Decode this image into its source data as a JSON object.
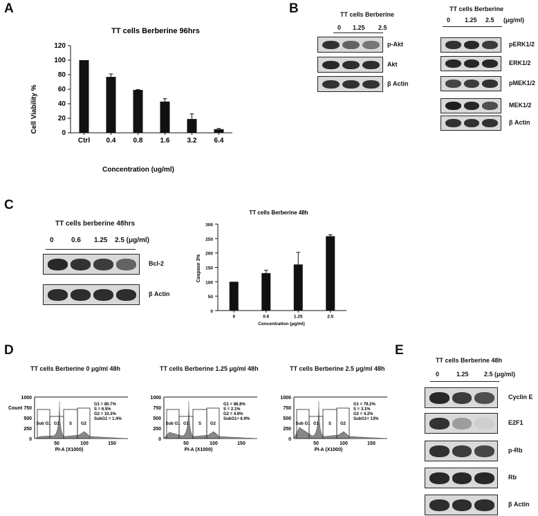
{
  "panel_letters": {
    "a": "A",
    "b": "B",
    "c": "C",
    "d": "D",
    "e": "E"
  },
  "panelA": {
    "title": "TT cells  Berberine  96hrs",
    "chart_data": {
      "type": "bar",
      "title": "TT cells  Berberine  96hrs",
      "xlabel": "Concentration (ug/ml)",
      "ylabel": "Cell Viability %",
      "categories": [
        "Ctrl",
        "0.4",
        "0.8",
        "1.6",
        "3.2",
        "6.4"
      ],
      "values": [
        100,
        77,
        59,
        43,
        19,
        5
      ],
      "errors": [
        0,
        4,
        0.5,
        4,
        7,
        1
      ],
      "ylim": [
        0,
        120
      ],
      "yticks": [
        0,
        20,
        40,
        60,
        80,
        100,
        120
      ]
    }
  },
  "panelB": {
    "header_left": "TT cells Berberine",
    "conc_left": [
      "0",
      "1.25",
      "2.5"
    ],
    "rows_left": [
      "p-Akt",
      "Akt",
      "β Actin"
    ],
    "header_right": "TT cells Berberine",
    "conc_right": [
      "0",
      "1.25",
      "2.5"
    ],
    "unit_right": "(μg/ml)",
    "rows_right": [
      "pERK1/2",
      "ERK1/2",
      "pMEK1/2",
      "MEK1/2",
      "β Actin"
    ]
  },
  "panelC": {
    "blot_header": "TT cells berberine 48hrs",
    "conc": [
      "0",
      "0.6",
      "1.25",
      "2.5 (μg/ml)"
    ],
    "rows": [
      "Bcl-2",
      "β Actin"
    ],
    "chart_title": "TT cells  Berberine  48h",
    "chart_data": {
      "type": "bar",
      "title": "TT cells  Berberine  48h",
      "xlabel": "Concentration (μg/ml)",
      "ylabel": "Caspase 3%",
      "categories": [
        "0",
        "0.6",
        "1.25",
        "2.5"
      ],
      "values": [
        100,
        130,
        160,
        258
      ],
      "errors": [
        0,
        10,
        42,
        5
      ],
      "ylim": [
        0,
        300
      ],
      "yticks": [
        0,
        50,
        100,
        150,
        200,
        250,
        300
      ]
    }
  },
  "panelD": {
    "plots": [
      {
        "title": "TT cells Berberine 0 μg/ml 48h",
        "stats": [
          "G1 = 80.7%",
          "S  = 6.5%",
          "G2 = 10.3%",
          "SubG1 = 1.4%"
        ]
      },
      {
        "title": "TT cells Berberine 1.25 μg/ml 48h",
        "stats": [
          "G1 = 86.8%",
          "S   = 2.1%",
          "G2 =  4.6%",
          "SubG1= 6.9%"
        ]
      },
      {
        "title": "TT cells Berberine 2.5 μg/ml 48h",
        "stats": [
          "G1 = 79.2%",
          "S = 3.1%",
          "G2 = 4.2%",
          "SubG1= 13%"
        ]
      }
    ],
    "ylabel": "Count",
    "xlabel": "PI-A  (X1000)",
    "yticks": [
      "1000",
      "750",
      "500",
      "250",
      "0"
    ],
    "xticks": [
      "50",
      "100",
      "150"
    ],
    "gates": [
      "Sub G1",
      "G1",
      "S",
      "G2"
    ]
  },
  "panelE": {
    "header": "TT cells Berberine 48h",
    "conc": [
      "0",
      "1.25",
      "2.5 (μg/ml)"
    ],
    "rows": [
      "Cyclin E",
      "E2F1",
      "p-Rb",
      "Rb",
      "β Actin"
    ]
  }
}
